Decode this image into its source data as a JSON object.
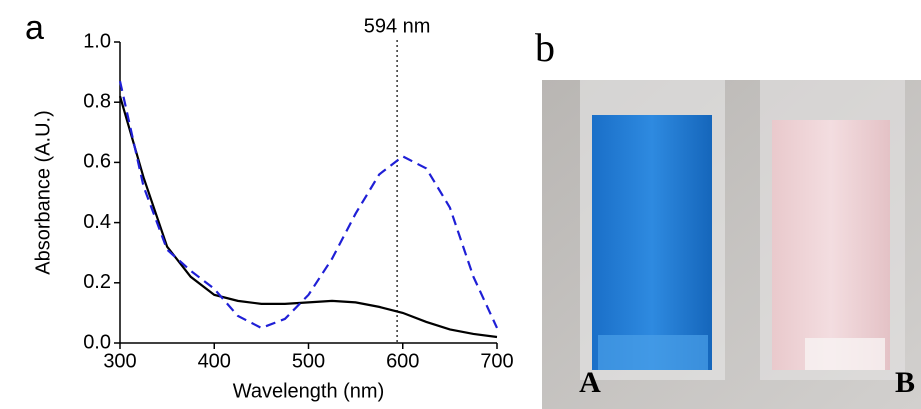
{
  "chart_data": {
    "type": "line",
    "panel_label": "a",
    "x_label": "Wavelength (nm)",
    "y_label": "Absorbance (A.U.)",
    "x": [
      300,
      325,
      350,
      375,
      400,
      425,
      450,
      475,
      500,
      525,
      550,
      575,
      600,
      625,
      650,
      675,
      700
    ],
    "series": [
      {
        "color": "#000000",
        "dash": "solid",
        "values": [
          0.82,
          0.55,
          0.32,
          0.22,
          0.16,
          0.14,
          0.13,
          0.13,
          0.135,
          0.14,
          0.135,
          0.12,
          0.1,
          0.07,
          0.045,
          0.03,
          0.02
        ]
      },
      {
        "color": "#1f1fd6",
        "dash": "dashed",
        "values": [
          0.87,
          0.52,
          0.31,
          0.24,
          0.18,
          0.09,
          0.05,
          0.08,
          0.16,
          0.28,
          0.43,
          0.56,
          0.62,
          0.58,
          0.45,
          0.22,
          0.05
        ]
      }
    ],
    "xlim": [
      300,
      700
    ],
    "xticks": [
      300,
      400,
      500,
      600,
      700
    ],
    "ylim": [
      0,
      1
    ],
    "yticks": [
      {
        "value": 0,
        "label": "0.0"
      },
      0.2,
      0.4,
      0.6,
      0.8,
      {
        "value": 1,
        "label": "1.0"
      }
    ],
    "annotation": {
      "text": "594 nm",
      "x": 594
    }
  },
  "photo": {
    "panel_label": "b",
    "cuvettes": [
      "A",
      "B"
    ]
  }
}
